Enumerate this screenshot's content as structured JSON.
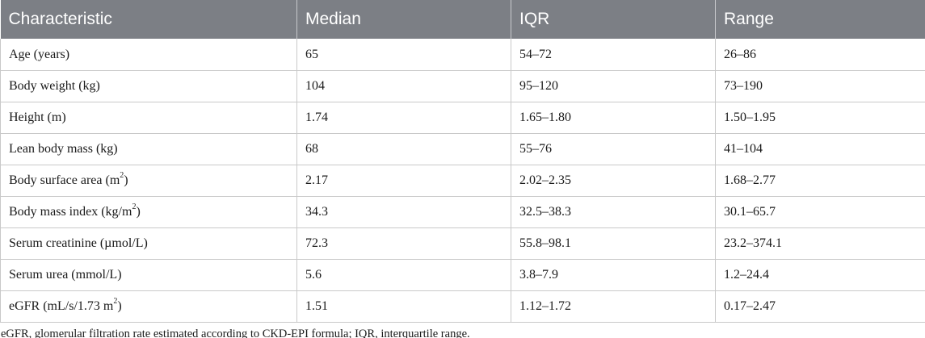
{
  "table": {
    "headers": [
      "Characteristic",
      "Median",
      "IQR",
      "Range"
    ],
    "rows": [
      {
        "characteristic": "Age (years)",
        "median": "65",
        "iqr": "54–72",
        "range": "26–86"
      },
      {
        "characteristic": "Body weight (kg)",
        "median": "104",
        "iqr": "95–120",
        "range": "73–190"
      },
      {
        "characteristic": "Height (m)",
        "median": "1.74",
        "iqr": "1.65–1.80",
        "range": "1.50–1.95"
      },
      {
        "characteristic": "Lean body mass (kg)",
        "median": "68",
        "iqr": "55–76",
        "range": "41–104"
      },
      {
        "characteristic_pre": "Body surface area (m",
        "characteristic_sup": "2",
        "characteristic_post": ")",
        "median": "2.17",
        "iqr": "2.02–2.35",
        "range": "1.68–2.77"
      },
      {
        "characteristic_pre": "Body mass index (kg/m",
        "characteristic_sup": "2",
        "characteristic_post": ")",
        "median": "34.3",
        "iqr": "32.5–38.3",
        "range": "30.1–65.7"
      },
      {
        "characteristic": "Serum creatinine (µmol/L)",
        "median": "72.3",
        "iqr": "55.8–98.1",
        "range": "23.2–374.1"
      },
      {
        "characteristic": "Serum urea (mmol/L)",
        "median": "5.6",
        "iqr": "3.8–7.9",
        "range": "1.2–24.4"
      },
      {
        "characteristic_pre": "eGFR (mL/s/1.73 m",
        "characteristic_sup": "2",
        "characteristic_post": ")",
        "median": "1.51",
        "iqr": "1.12–1.72",
        "range": "0.17–2.47"
      }
    ]
  },
  "footnote": "eGFR, glomerular filtration rate estimated according to CKD-EPI formula; IQR, interquartile range."
}
